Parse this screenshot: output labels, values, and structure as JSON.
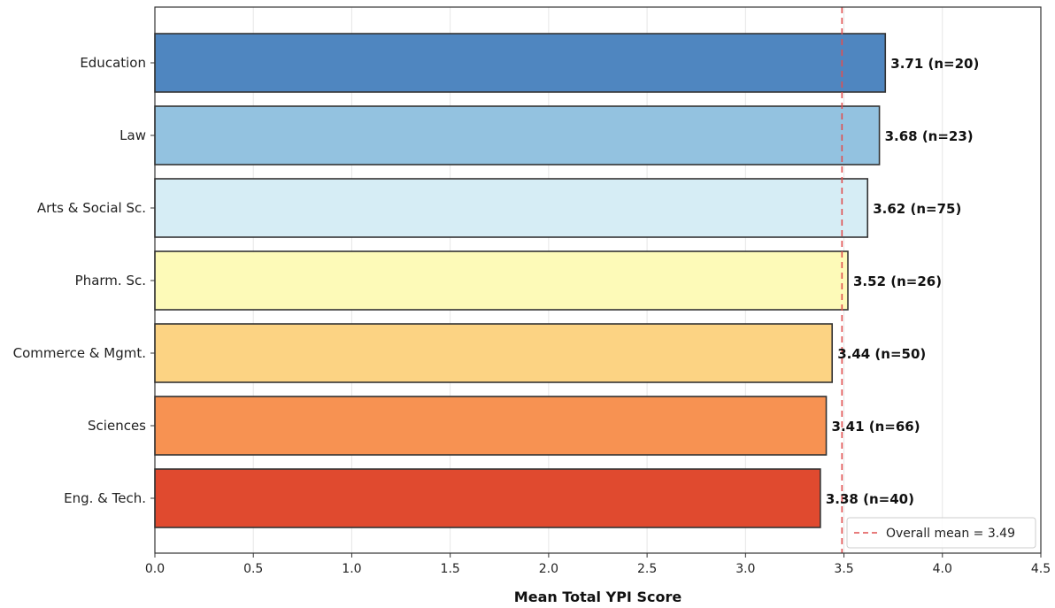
{
  "chart_data": {
    "type": "bar",
    "orientation": "horizontal",
    "categories": [
      "Education",
      "Law",
      "Arts & Social Sc.",
      "Pharm. Sc.",
      "Commerce & Mgmt.",
      "Sciences",
      "Eng. & Tech."
    ],
    "values": [
      3.71,
      3.68,
      3.62,
      3.52,
      3.44,
      3.41,
      3.38
    ],
    "data_labels": [
      "3.71 (n=20)",
      "3.68 (n=23)",
      "3.62 (n=75)",
      "3.52 (n=26)",
      "3.44 (n=50)",
      "3.41 (n=66)",
      "3.38 (n=40)"
    ],
    "colors": [
      "#4f86c0",
      "#93c2e0",
      "#d6edf5",
      "#fdfab8",
      "#fcd383",
      "#f79252",
      "#e04a2f"
    ],
    "xlabel": "Mean Total YPI Score",
    "ylabel": "",
    "title": "",
    "xlim": [
      0,
      4.5
    ],
    "xticks": [
      0.0,
      0.5,
      1.0,
      1.5,
      2.0,
      2.5,
      3.0,
      3.5,
      4.0,
      4.5
    ],
    "xtick_labels": [
      "0.0",
      "0.5",
      "1.0",
      "1.5",
      "2.0",
      "2.5",
      "3.0",
      "3.5",
      "4.0",
      "4.5"
    ],
    "grid": "vertical",
    "reference_line": {
      "value": 3.49,
      "color": "#e05050",
      "style": "dashed"
    },
    "legend": {
      "entries": [
        "Overall mean = 3.49"
      ],
      "position": "lower-right"
    }
  }
}
